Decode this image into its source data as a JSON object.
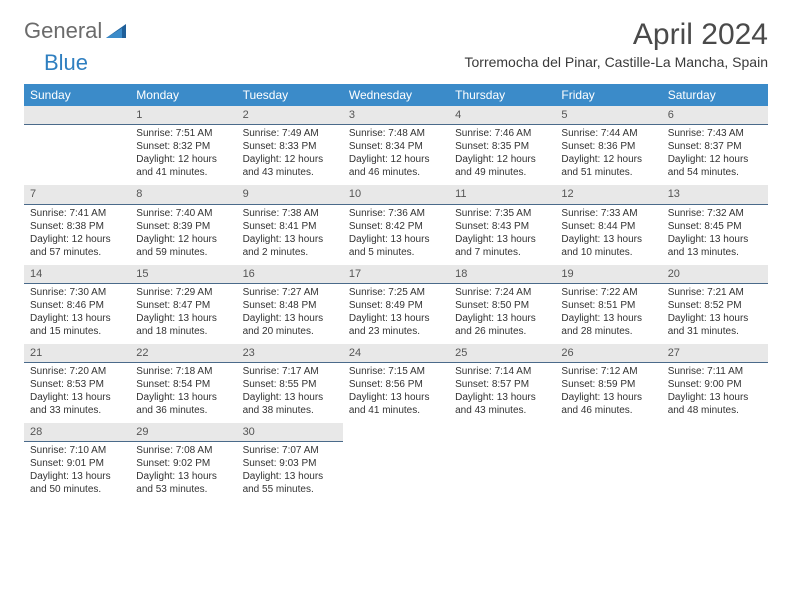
{
  "logo": {
    "part1": "General",
    "part2": "Blue"
  },
  "title": "April 2024",
  "location": "Torremocha del Pinar, Castille-La Mancha, Spain",
  "colors": {
    "header_bg": "#3b8bc9",
    "daynum_bg": "#e8e8e8",
    "daynum_border": "#4a6a8a",
    "text": "#333333",
    "logo_gray": "#6b6b6b",
    "logo_blue": "#2f7fc0"
  },
  "weekdays": [
    "Sunday",
    "Monday",
    "Tuesday",
    "Wednesday",
    "Thursday",
    "Friday",
    "Saturday"
  ],
  "weeks": [
    [
      {
        "empty": true
      },
      {
        "num": "1",
        "sunrise": "Sunrise: 7:51 AM",
        "sunset": "Sunset: 8:32 PM",
        "day1": "Daylight: 12 hours",
        "day2": "and 41 minutes."
      },
      {
        "num": "2",
        "sunrise": "Sunrise: 7:49 AM",
        "sunset": "Sunset: 8:33 PM",
        "day1": "Daylight: 12 hours",
        "day2": "and 43 minutes."
      },
      {
        "num": "3",
        "sunrise": "Sunrise: 7:48 AM",
        "sunset": "Sunset: 8:34 PM",
        "day1": "Daylight: 12 hours",
        "day2": "and 46 minutes."
      },
      {
        "num": "4",
        "sunrise": "Sunrise: 7:46 AM",
        "sunset": "Sunset: 8:35 PM",
        "day1": "Daylight: 12 hours",
        "day2": "and 49 minutes."
      },
      {
        "num": "5",
        "sunrise": "Sunrise: 7:44 AM",
        "sunset": "Sunset: 8:36 PM",
        "day1": "Daylight: 12 hours",
        "day2": "and 51 minutes."
      },
      {
        "num": "6",
        "sunrise": "Sunrise: 7:43 AM",
        "sunset": "Sunset: 8:37 PM",
        "day1": "Daylight: 12 hours",
        "day2": "and 54 minutes."
      }
    ],
    [
      {
        "num": "7",
        "sunrise": "Sunrise: 7:41 AM",
        "sunset": "Sunset: 8:38 PM",
        "day1": "Daylight: 12 hours",
        "day2": "and 57 minutes."
      },
      {
        "num": "8",
        "sunrise": "Sunrise: 7:40 AM",
        "sunset": "Sunset: 8:39 PM",
        "day1": "Daylight: 12 hours",
        "day2": "and 59 minutes."
      },
      {
        "num": "9",
        "sunrise": "Sunrise: 7:38 AM",
        "sunset": "Sunset: 8:41 PM",
        "day1": "Daylight: 13 hours",
        "day2": "and 2 minutes."
      },
      {
        "num": "10",
        "sunrise": "Sunrise: 7:36 AM",
        "sunset": "Sunset: 8:42 PM",
        "day1": "Daylight: 13 hours",
        "day2": "and 5 minutes."
      },
      {
        "num": "11",
        "sunrise": "Sunrise: 7:35 AM",
        "sunset": "Sunset: 8:43 PM",
        "day1": "Daylight: 13 hours",
        "day2": "and 7 minutes."
      },
      {
        "num": "12",
        "sunrise": "Sunrise: 7:33 AM",
        "sunset": "Sunset: 8:44 PM",
        "day1": "Daylight: 13 hours",
        "day2": "and 10 minutes."
      },
      {
        "num": "13",
        "sunrise": "Sunrise: 7:32 AM",
        "sunset": "Sunset: 8:45 PM",
        "day1": "Daylight: 13 hours",
        "day2": "and 13 minutes."
      }
    ],
    [
      {
        "num": "14",
        "sunrise": "Sunrise: 7:30 AM",
        "sunset": "Sunset: 8:46 PM",
        "day1": "Daylight: 13 hours",
        "day2": "and 15 minutes."
      },
      {
        "num": "15",
        "sunrise": "Sunrise: 7:29 AM",
        "sunset": "Sunset: 8:47 PM",
        "day1": "Daylight: 13 hours",
        "day2": "and 18 minutes."
      },
      {
        "num": "16",
        "sunrise": "Sunrise: 7:27 AM",
        "sunset": "Sunset: 8:48 PM",
        "day1": "Daylight: 13 hours",
        "day2": "and 20 minutes."
      },
      {
        "num": "17",
        "sunrise": "Sunrise: 7:25 AM",
        "sunset": "Sunset: 8:49 PM",
        "day1": "Daylight: 13 hours",
        "day2": "and 23 minutes."
      },
      {
        "num": "18",
        "sunrise": "Sunrise: 7:24 AM",
        "sunset": "Sunset: 8:50 PM",
        "day1": "Daylight: 13 hours",
        "day2": "and 26 minutes."
      },
      {
        "num": "19",
        "sunrise": "Sunrise: 7:22 AM",
        "sunset": "Sunset: 8:51 PM",
        "day1": "Daylight: 13 hours",
        "day2": "and 28 minutes."
      },
      {
        "num": "20",
        "sunrise": "Sunrise: 7:21 AM",
        "sunset": "Sunset: 8:52 PM",
        "day1": "Daylight: 13 hours",
        "day2": "and 31 minutes."
      }
    ],
    [
      {
        "num": "21",
        "sunrise": "Sunrise: 7:20 AM",
        "sunset": "Sunset: 8:53 PM",
        "day1": "Daylight: 13 hours",
        "day2": "and 33 minutes."
      },
      {
        "num": "22",
        "sunrise": "Sunrise: 7:18 AM",
        "sunset": "Sunset: 8:54 PM",
        "day1": "Daylight: 13 hours",
        "day2": "and 36 minutes."
      },
      {
        "num": "23",
        "sunrise": "Sunrise: 7:17 AM",
        "sunset": "Sunset: 8:55 PM",
        "day1": "Daylight: 13 hours",
        "day2": "and 38 minutes."
      },
      {
        "num": "24",
        "sunrise": "Sunrise: 7:15 AM",
        "sunset": "Sunset: 8:56 PM",
        "day1": "Daylight: 13 hours",
        "day2": "and 41 minutes."
      },
      {
        "num": "25",
        "sunrise": "Sunrise: 7:14 AM",
        "sunset": "Sunset: 8:57 PM",
        "day1": "Daylight: 13 hours",
        "day2": "and 43 minutes."
      },
      {
        "num": "26",
        "sunrise": "Sunrise: 7:12 AM",
        "sunset": "Sunset: 8:59 PM",
        "day1": "Daylight: 13 hours",
        "day2": "and 46 minutes."
      },
      {
        "num": "27",
        "sunrise": "Sunrise: 7:11 AM",
        "sunset": "Sunset: 9:00 PM",
        "day1": "Daylight: 13 hours",
        "day2": "and 48 minutes."
      }
    ],
    [
      {
        "num": "28",
        "sunrise": "Sunrise: 7:10 AM",
        "sunset": "Sunset: 9:01 PM",
        "day1": "Daylight: 13 hours",
        "day2": "and 50 minutes."
      },
      {
        "num": "29",
        "sunrise": "Sunrise: 7:08 AM",
        "sunset": "Sunset: 9:02 PM",
        "day1": "Daylight: 13 hours",
        "day2": "and 53 minutes."
      },
      {
        "num": "30",
        "sunrise": "Sunrise: 7:07 AM",
        "sunset": "Sunset: 9:03 PM",
        "day1": "Daylight: 13 hours",
        "day2": "and 55 minutes."
      },
      {
        "empty": true
      },
      {
        "empty": true
      },
      {
        "empty": true
      },
      {
        "empty": true
      }
    ]
  ]
}
